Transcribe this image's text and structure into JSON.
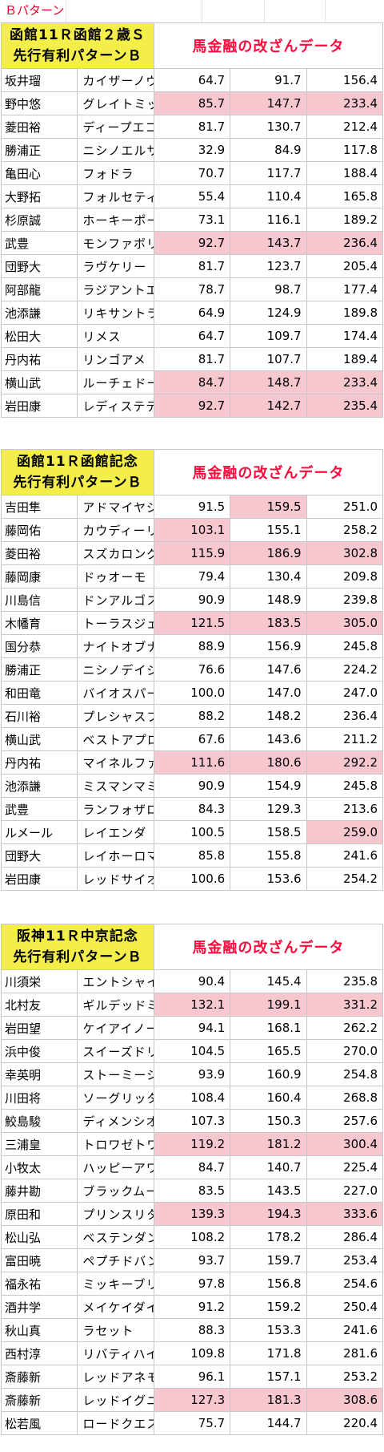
{
  "pattern_label": "Ｂパターン",
  "tables": [
    {
      "title_line1": "函館11Ｒ函館２歳Ｓ",
      "title_line2": "先行有利パターンＢ",
      "subtitle": "馬金融の改ざんデータ",
      "rows": [
        {
          "jockey": "坂井瑠",
          "horse": "カイザーノヴァ",
          "v1": "64.7",
          "v2": "91.7",
          "v3": "156.4",
          "h1": false,
          "h2": false,
          "h3": false
        },
        {
          "jockey": "野中悠",
          "horse": "グレイトミッション",
          "v1": "85.7",
          "v2": "147.7",
          "v3": "233.4",
          "h1": true,
          "h2": true,
          "h3": true
        },
        {
          "jockey": "菱田裕",
          "horse": "ディープエコロジー",
          "v1": "81.7",
          "v2": "130.7",
          "v3": "212.4",
          "h1": false,
          "h2": false,
          "h3": false
        },
        {
          "jockey": "勝浦正",
          "horse": "ニシノエルサ",
          "v1": "32.9",
          "v2": "84.9",
          "v3": "117.8",
          "h1": false,
          "h2": false,
          "h3": false
        },
        {
          "jockey": "亀田心",
          "horse": "フォドラ",
          "v1": "70.7",
          "v2": "117.7",
          "v3": "188.4",
          "h1": false,
          "h2": false,
          "h3": false
        },
        {
          "jockey": "大野拓",
          "horse": "フォルセティ",
          "v1": "55.4",
          "v2": "110.4",
          "v3": "165.8",
          "h1": false,
          "h2": false,
          "h3": false
        },
        {
          "jockey": "杉原誠",
          "horse": "ホーキーポーキー",
          "v1": "73.1",
          "v2": "116.1",
          "v3": "189.2",
          "h1": false,
          "h2": false,
          "h3": false
        },
        {
          "jockey": "武豊",
          "horse": "モンファボリ",
          "v1": "92.7",
          "v2": "143.7",
          "v3": "236.4",
          "h1": true,
          "h2": true,
          "h3": true
        },
        {
          "jockey": "団野大",
          "horse": "ラヴケリー",
          "v1": "81.7",
          "v2": "123.7",
          "v3": "205.4",
          "h1": false,
          "h2": false,
          "h3": false
        },
        {
          "jockey": "阿部龍",
          "horse": "ラジアントエンティ",
          "v1": "78.7",
          "v2": "98.7",
          "v3": "177.4",
          "h1": false,
          "h2": false,
          "h3": false
        },
        {
          "jockey": "池添謙",
          "horse": "リキサントライ",
          "v1": "64.9",
          "v2": "124.9",
          "v3": "189.8",
          "h1": false,
          "h2": false,
          "h3": false
        },
        {
          "jockey": "松田大",
          "horse": "リメス",
          "v1": "64.7",
          "v2": "109.7",
          "v3": "174.4",
          "h1": false,
          "h2": false,
          "h3": false
        },
        {
          "jockey": "丹内祐",
          "horse": "リンゴアメ",
          "v1": "81.7",
          "v2": "107.7",
          "v3": "189.4",
          "h1": false,
          "h2": false,
          "h3": false
        },
        {
          "jockey": "横山武",
          "horse": "ルーチェドーロ",
          "v1": "84.7",
          "v2": "148.7",
          "v3": "233.4",
          "h1": true,
          "h2": true,
          "h3": true
        },
        {
          "jockey": "岩田康",
          "horse": "レディステディゴー",
          "v1": "92.7",
          "v2": "142.7",
          "v3": "235.4",
          "h1": true,
          "h2": true,
          "h3": true
        }
      ]
    },
    {
      "title_line1": "函館11Ｒ函館記念",
      "title_line2": "先行有利パターンＢ",
      "subtitle": "馬金融の改ざんデータ",
      "rows": [
        {
          "jockey": "吉田隼",
          "horse": "アドマイヤジャスタ",
          "v1": "91.5",
          "v2": "159.5",
          "v3": "251.0",
          "h1": false,
          "h2": true,
          "h3": false
        },
        {
          "jockey": "藤岡佑",
          "horse": "カウディーリョ",
          "v1": "103.1",
          "v2": "155.1",
          "v3": "258.2",
          "h1": true,
          "h2": false,
          "h3": false
        },
        {
          "jockey": "菱田裕",
          "horse": "スズカロング",
          "v1": "115.9",
          "v2": "186.9",
          "v3": "302.8",
          "h1": true,
          "h2": true,
          "h3": true
        },
        {
          "jockey": "藤岡康",
          "horse": "ドゥオーモ",
          "v1": "79.4",
          "v2": "130.4",
          "v3": "209.8",
          "h1": false,
          "h2": false,
          "h3": false
        },
        {
          "jockey": "川島信",
          "horse": "ドンアルゴス",
          "v1": "90.9",
          "v2": "148.9",
          "v3": "239.8",
          "h1": false,
          "h2": false,
          "h3": false
        },
        {
          "jockey": "木幡育",
          "horse": "トーラスジェミニ",
          "v1": "121.5",
          "v2": "183.5",
          "v3": "305.0",
          "h1": true,
          "h2": true,
          "h3": true
        },
        {
          "jockey": "国分恭",
          "horse": "ナイトオブナイツ",
          "v1": "88.9",
          "v2": "156.9",
          "v3": "245.8",
          "h1": false,
          "h2": false,
          "h3": false
        },
        {
          "jockey": "勝浦正",
          "horse": "ニシノデイジー",
          "v1": "76.6",
          "v2": "147.6",
          "v3": "224.2",
          "h1": false,
          "h2": false,
          "h3": false
        },
        {
          "jockey": "和田竜",
          "horse": "バイオスパーク",
          "v1": "100.0",
          "v2": "147.0",
          "v3": "247.0",
          "h1": false,
          "h2": false,
          "h3": false
        },
        {
          "jockey": "石川裕",
          "horse": "プレシャスブルー",
          "v1": "88.2",
          "v2": "148.2",
          "v3": "236.4",
          "h1": false,
          "h2": false,
          "h3": false
        },
        {
          "jockey": "横山武",
          "horse": "ベストアプローチ",
          "v1": "67.6",
          "v2": "143.6",
          "v3": "211.2",
          "h1": false,
          "h2": false,
          "h3": false
        },
        {
          "jockey": "丹内祐",
          "horse": "マイネルファンロン",
          "v1": "111.6",
          "v2": "180.6",
          "v3": "292.2",
          "h1": true,
          "h2": true,
          "h3": true
        },
        {
          "jockey": "池添謙",
          "horse": "ミスマンマミーア",
          "v1": "90.9",
          "v2": "154.9",
          "v3": "245.8",
          "h1": false,
          "h2": false,
          "h3": false
        },
        {
          "jockey": "武豊",
          "horse": "ランフォザローゼス",
          "v1": "84.3",
          "v2": "129.3",
          "v3": "213.6",
          "h1": false,
          "h2": false,
          "h3": false
        },
        {
          "jockey": "ルメール",
          "horse": "レイエンダ",
          "v1": "100.5",
          "v2": "158.5",
          "v3": "259.0",
          "h1": false,
          "h2": false,
          "h3": true
        },
        {
          "jockey": "団野大",
          "horse": "レイホーロマンス",
          "v1": "85.8",
          "v2": "155.8",
          "v3": "241.6",
          "h1": false,
          "h2": false,
          "h3": false
        },
        {
          "jockey": "岩田康",
          "horse": "レッドサイオン",
          "v1": "100.6",
          "v2": "153.6",
          "v3": "254.2",
          "h1": false,
          "h2": false,
          "h3": false
        }
      ]
    },
    {
      "title_line1": "阪神11Ｒ中京記念",
      "title_line2": "先行有利パターンＢ",
      "subtitle": "馬金融の改ざんデータ",
      "rows": [
        {
          "jockey": "川須栄",
          "horse": "エントシャイデン",
          "v1": "90.4",
          "v2": "145.4",
          "v3": "235.8",
          "h1": false,
          "h2": false,
          "h3": false
        },
        {
          "jockey": "北村友",
          "horse": "ギルデッドミラー",
          "v1": "132.1",
          "v2": "199.1",
          "v3": "331.2",
          "h1": true,
          "h2": true,
          "h3": true
        },
        {
          "jockey": "岩田望",
          "horse": "ケイアイノーテック",
          "v1": "94.1",
          "v2": "168.1",
          "v3": "262.2",
          "h1": false,
          "h2": false,
          "h3": false
        },
        {
          "jockey": "浜中俊",
          "horse": "スイーズドリームス",
          "v1": "104.5",
          "v2": "165.5",
          "v3": "270.0",
          "h1": false,
          "h2": false,
          "h3": false
        },
        {
          "jockey": "幸英明",
          "horse": "ストーミーシー",
          "v1": "93.9",
          "v2": "160.9",
          "v3": "254.8",
          "h1": false,
          "h2": false,
          "h3": false
        },
        {
          "jockey": "川田将",
          "horse": "ソーグリッタリング",
          "v1": "108.4",
          "v2": "160.4",
          "v3": "268.8",
          "h1": false,
          "h2": false,
          "h3": false
        },
        {
          "jockey": "鮫島駿",
          "horse": "ディメンシオン",
          "v1": "107.3",
          "v2": "150.3",
          "v3": "257.6",
          "h1": false,
          "h2": false,
          "h3": false
        },
        {
          "jockey": "三浦皇",
          "horse": "トロワゼトワル",
          "v1": "119.2",
          "v2": "181.2",
          "v3": "300.4",
          "h1": true,
          "h2": true,
          "h3": true
        },
        {
          "jockey": "小牧太",
          "horse": "ハッピーアワー",
          "v1": "84.7",
          "v2": "140.7",
          "v3": "225.4",
          "h1": false,
          "h2": false,
          "h3": false
        },
        {
          "jockey": "藤井勘",
          "horse": "ブラックムーン",
          "v1": "83.5",
          "v2": "143.5",
          "v3": "227.0",
          "h1": false,
          "h2": false,
          "h3": false
        },
        {
          "jockey": "原田和",
          "horse": "プリンスリターン",
          "v1": "139.3",
          "v2": "194.3",
          "v3": "333.6",
          "h1": true,
          "h2": true,
          "h3": true
        },
        {
          "jockey": "松山弘",
          "horse": "ベステンダンク",
          "v1": "108.2",
          "v2": "178.2",
          "v3": "286.4",
          "h1": false,
          "h2": false,
          "h3": false
        },
        {
          "jockey": "富田暁",
          "horse": "ペプチドバンブー",
          "v1": "93.7",
          "v2": "159.7",
          "v3": "253.4",
          "h1": false,
          "h2": false,
          "h3": false
        },
        {
          "jockey": "福永祐",
          "horse": "ミッキーブリランテ",
          "v1": "97.8",
          "v2": "156.8",
          "v3": "254.6",
          "h1": false,
          "h2": false,
          "h3": false
        },
        {
          "jockey": "酒井学",
          "horse": "メイケイダイハード",
          "v1": "91.2",
          "v2": "159.2",
          "v3": "250.4",
          "h1": false,
          "h2": false,
          "h3": false
        },
        {
          "jockey": "秋山真",
          "horse": "ラセット",
          "v1": "88.3",
          "v2": "153.3",
          "v3": "241.6",
          "h1": false,
          "h2": false,
          "h3": false
        },
        {
          "jockey": "西村淳",
          "horse": "リバティハイツ",
          "v1": "109.8",
          "v2": "171.8",
          "v3": "281.6",
          "h1": false,
          "h2": false,
          "h3": false
        },
        {
          "jockey": "斎藤新",
          "horse": "レッドアネモス",
          "v1": "96.1",
          "v2": "157.1",
          "v3": "253.2",
          "h1": false,
          "h2": false,
          "h3": false
        },
        {
          "jockey": "斎藤新",
          "horse": "レッドイグニス",
          "v1": "127.3",
          "v2": "181.3",
          "v3": "308.6",
          "h1": true,
          "h2": true,
          "h3": true
        },
        {
          "jockey": "松若風",
          "horse": "ロードクエスト",
          "v1": "75.7",
          "v2": "144.7",
          "v3": "220.4",
          "h1": false,
          "h2": false,
          "h3": false
        }
      ]
    }
  ]
}
